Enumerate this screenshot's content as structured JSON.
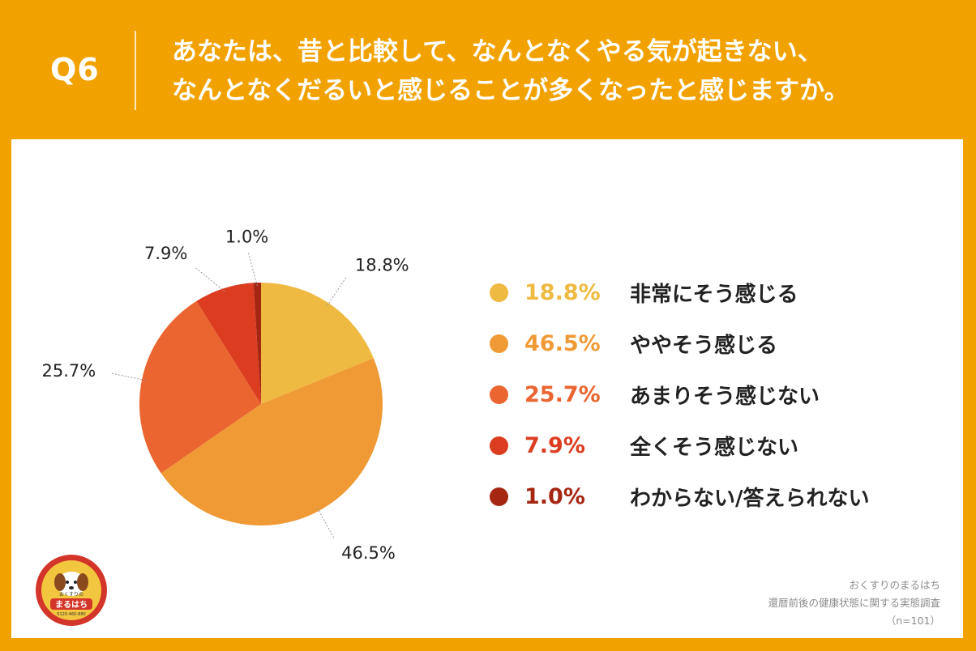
{
  "header": {
    "q_label": "Q6",
    "question_line1": "あなたは、昔と比較して、なんとなくやる気が起きない、",
    "question_line2": "なんとなくだるいと感じることが多くなったと感じますか。"
  },
  "chart_data": {
    "type": "pie",
    "title": "",
    "labels": [
      "非常にそう感じる",
      "ややそう感じる",
      "あまりそう感じない",
      "全くそう感じない",
      "わからない/答えられない"
    ],
    "values": [
      18.8,
      46.5,
      25.7,
      7.9,
      1.0
    ],
    "value_labels": [
      "18.8%",
      "46.5%",
      "25.7%",
      "7.9%",
      "1.0%"
    ],
    "colors": [
      "#efba42",
      "#f09a35",
      "#ea6530",
      "#dc3c20",
      "#a52712"
    ],
    "start": "12 o'clock, clockwise",
    "legend_placement": "right"
  },
  "credits": {
    "line1": "おくすりのまるはち",
    "line2": "還暦前後の健康状態に関する実態調査",
    "line3": "（n=101）"
  },
  "logo": {
    "text_small": "おくすりの",
    "text_big": "まるはち",
    "tel": "0120-460-880"
  }
}
